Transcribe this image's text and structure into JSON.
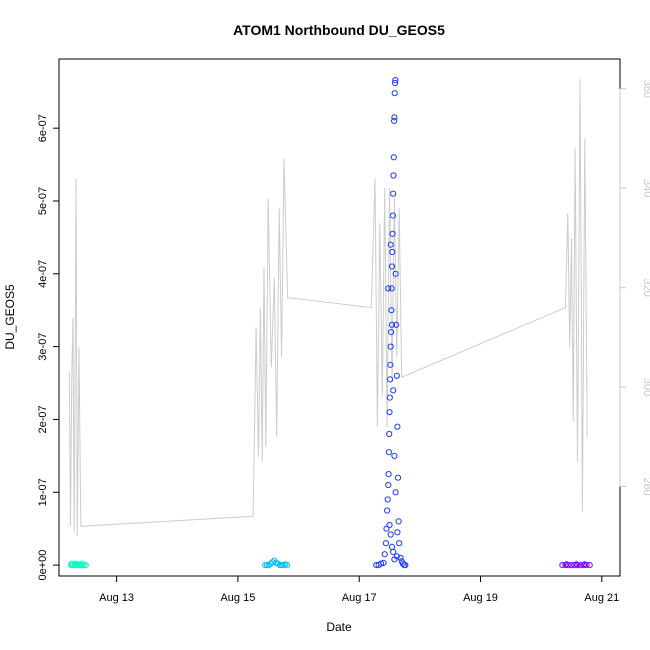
{
  "chart_data": {
    "type": "scatter",
    "title": "ATOM1 Northbound DU_GEOS5",
    "xlabel": "Date",
    "ylabel": "DU_GEOS5",
    "x_ticks": [
      "Aug 13",
      "Aug 15",
      "Aug 17",
      "Aug 19",
      "Aug 21"
    ],
    "x_tick_days": [
      13,
      15,
      17,
      19,
      21
    ],
    "xlim_days": [
      12.05,
      21.3
    ],
    "ylim": [
      -1.5e-08,
      6.95e-07
    ],
    "y_ticks": [
      0,
      1e-07,
      2e-07,
      3e-07,
      4e-07,
      5e-07,
      6e-07
    ],
    "y_tick_labels": [
      "0e+00",
      "1e-07",
      "2e-07",
      "3e-07",
      "4e-07",
      "5e-07",
      "6e-07"
    ],
    "y2_ticks": [
      280,
      300,
      320,
      340,
      360
    ],
    "y2lim": [
      262,
      366
    ],
    "series": [
      {
        "color": "#00ffbf",
        "points": [
          [
            12.25,
            0
          ],
          [
            12.28,
            0
          ],
          [
            12.31,
            0
          ],
          [
            12.34,
            0
          ],
          [
            12.37,
            0
          ],
          [
            12.4,
            0
          ],
          [
            12.43,
            0
          ],
          [
            12.46,
            0
          ],
          [
            12.49,
            0
          ],
          [
            12.26,
            2e-09
          ],
          [
            12.33,
            2e-09
          ],
          [
            12.42,
            2e-09
          ]
        ]
      },
      {
        "color": "#00bfff",
        "points": [
          [
            15.45,
            0
          ],
          [
            15.48,
            0
          ],
          [
            15.51,
            0
          ],
          [
            15.54,
            2e-09
          ],
          [
            15.57,
            4e-09
          ],
          [
            15.6,
            6e-09
          ],
          [
            15.63,
            3e-09
          ],
          [
            15.66,
            2e-09
          ],
          [
            15.69,
            0
          ],
          [
            15.72,
            0
          ],
          [
            15.75,
            0
          ],
          [
            15.78,
            1e-09
          ],
          [
            15.81,
            0
          ]
        ]
      },
      {
        "color": "#1c3bff",
        "points": [
          [
            17.28,
            0
          ],
          [
            17.32,
            0
          ],
          [
            17.36,
            2e-09
          ],
          [
            17.4,
            3e-09
          ],
          [
            17.42,
            1.5e-08
          ],
          [
            17.44,
            3e-08
          ],
          [
            17.45,
            5e-08
          ],
          [
            17.46,
            7.5e-08
          ],
          [
            17.47,
            9e-08
          ],
          [
            17.48,
            1.1e-07
          ],
          [
            17.485,
            1.25e-07
          ],
          [
            17.49,
            1.55e-07
          ],
          [
            17.495,
            1.8e-07
          ],
          [
            17.5,
            2.1e-07
          ],
          [
            17.505,
            2.3e-07
          ],
          [
            17.51,
            2.55e-07
          ],
          [
            17.515,
            2.75e-07
          ],
          [
            17.52,
            3e-07
          ],
          [
            17.525,
            3.2e-07
          ],
          [
            17.53,
            3.5e-07
          ],
          [
            17.535,
            3.8e-07
          ],
          [
            17.54,
            4.1e-07
          ],
          [
            17.545,
            4.3e-07
          ],
          [
            17.55,
            4.55e-07
          ],
          [
            17.555,
            4.8e-07
          ],
          [
            17.56,
            5.1e-07
          ],
          [
            17.565,
            5.35e-07
          ],
          [
            17.57,
            5.6e-07
          ],
          [
            17.575,
            6.1e-07
          ],
          [
            17.58,
            6.15e-07
          ],
          [
            17.585,
            6.48e-07
          ],
          [
            17.59,
            6.62e-07
          ],
          [
            17.595,
            6.66e-07
          ],
          [
            17.6,
            4e-07
          ],
          [
            17.61,
            3.3e-07
          ],
          [
            17.62,
            2.6e-07
          ],
          [
            17.63,
            1.9e-07
          ],
          [
            17.64,
            1.2e-07
          ],
          [
            17.65,
            6e-08
          ],
          [
            17.66,
            3e-08
          ],
          [
            17.68,
            1e-08
          ],
          [
            17.7,
            5e-09
          ],
          [
            17.72,
            2e-09
          ],
          [
            17.74,
            0
          ],
          [
            17.76,
            0
          ],
          [
            17.5,
            5.5e-08
          ],
          [
            17.52,
            4.2e-08
          ],
          [
            17.54,
            2.5e-08
          ],
          [
            17.56,
            1.8e-08
          ],
          [
            17.58,
            8e-09
          ],
          [
            17.62,
            1.2e-08
          ],
          [
            17.48,
            3.8e-07
          ],
          [
            17.52,
            4.4e-07
          ],
          [
            17.54,
            3.3e-07
          ],
          [
            17.56,
            2.4e-07
          ],
          [
            17.58,
            1.5e-07
          ],
          [
            17.6,
            1e-07
          ],
          [
            17.63,
            4.5e-08
          ]
        ]
      },
      {
        "color": "#7a00ff",
        "points": [
          [
            20.35,
            0
          ],
          [
            20.4,
            0
          ],
          [
            20.45,
            0
          ],
          [
            20.5,
            0
          ],
          [
            20.55,
            0
          ],
          [
            20.6,
            0
          ],
          [
            20.65,
            0
          ],
          [
            20.7,
            0
          ],
          [
            20.75,
            0
          ],
          [
            20.8,
            0
          ],
          [
            20.42,
            1e-09
          ],
          [
            20.58,
            1e-09
          ],
          [
            20.72,
            1e-09
          ]
        ]
      }
    ],
    "line_series": {
      "color": "#cccccc",
      "axis": "right",
      "points": [
        [
          12.22,
          303
        ],
        [
          12.24,
          272
        ],
        [
          12.26,
          301
        ],
        [
          12.28,
          314
        ],
        [
          12.3,
          271
        ],
        [
          12.33,
          342
        ],
        [
          12.35,
          270
        ],
        [
          12.38,
          308
        ],
        [
          12.41,
          272
        ],
        [
          15.25,
          274
        ],
        [
          15.3,
          312
        ],
        [
          15.34,
          286
        ],
        [
          15.37,
          316
        ],
        [
          15.4,
          285
        ],
        [
          15.43,
          324
        ],
        [
          15.46,
          288
        ],
        [
          15.5,
          338
        ],
        [
          15.55,
          304
        ],
        [
          15.6,
          322
        ],
        [
          15.64,
          290
        ],
        [
          15.68,
          336
        ],
        [
          15.72,
          306
        ],
        [
          15.76,
          346
        ],
        [
          15.82,
          318
        ],
        [
          17.2,
          316
        ],
        [
          17.26,
          342
        ],
        [
          17.3,
          292
        ],
        [
          17.34,
          333
        ],
        [
          17.38,
          298
        ],
        [
          17.42,
          340
        ],
        [
          17.46,
          292
        ],
        [
          17.5,
          340
        ],
        [
          17.54,
          301
        ],
        [
          17.58,
          338
        ],
        [
          17.62,
          306
        ],
        [
          17.66,
          336
        ],
        [
          17.7,
          302
        ],
        [
          20.4,
          316
        ],
        [
          20.44,
          335
        ],
        [
          20.47,
          308
        ],
        [
          20.5,
          330
        ],
        [
          20.53,
          293
        ],
        [
          20.56,
          348
        ],
        [
          20.6,
          285
        ],
        [
          20.64,
          362
        ],
        [
          20.68,
          275
        ],
        [
          20.72,
          350
        ],
        [
          20.76,
          290
        ]
      ]
    }
  }
}
